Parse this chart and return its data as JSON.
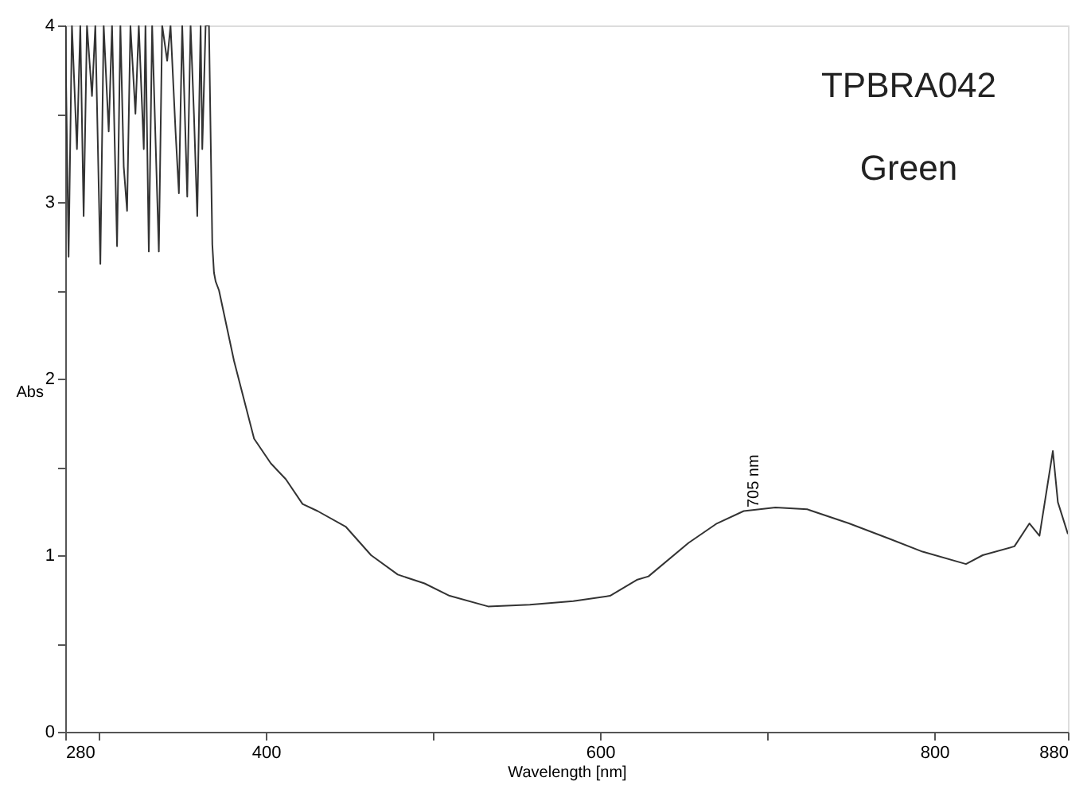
{
  "chart_data": {
    "type": "line",
    "xlabel": "Wavelength [nm]",
    "ylabel": "Abs",
    "x": [
      280,
      282,
      284,
      287,
      289,
      291,
      293,
      296,
      298,
      301,
      303,
      306,
      308,
      311,
      313,
      315,
      317,
      319,
      322,
      324,
      327,
      328,
      330,
      332,
      336,
      338,
      341,
      343,
      346,
      348,
      350,
      353,
      355,
      357,
      359,
      361,
      362,
      364,
      366,
      368,
      369,
      370,
      372,
      381,
      393,
      403,
      412,
      422,
      431,
      448,
      463,
      479,
      495,
      510,
      533,
      558,
      584,
      606,
      622,
      629,
      653,
      670,
      686,
      705,
      724,
      749,
      774,
      793,
      819,
      829,
      848,
      857,
      863,
      871,
      874,
      880
    ],
    "series": [
      {
        "color": "#333333",
        "values": [
          4,
          2.69,
          4,
          3.3,
          4,
          2.92,
          4,
          3.6,
          4,
          2.65,
          4,
          3.4,
          4,
          2.75,
          4,
          3.2,
          2.95,
          4,
          3.5,
          4,
          3.3,
          4,
          2.72,
          4,
          2.72,
          4,
          3.8,
          4,
          3.4,
          3.05,
          4,
          3.03,
          4,
          3.5,
          2.92,
          4,
          3.3,
          4,
          4,
          2.76,
          2.6,
          2.55,
          2.5,
          2.1,
          1.66,
          1.52,
          1.43,
          1.29,
          1.25,
          1.16,
          1.0,
          0.89,
          0.84,
          0.77,
          0.71,
          0.72,
          0.74,
          0.77,
          0.86,
          0.88,
          1.07,
          1.18,
          1.25,
          1.27,
          1.26,
          1.18,
          1.09,
          1.02,
          0.95,
          1.0,
          1.05,
          1.18,
          1.11,
          1.59,
          1.3,
          1.12
        ]
      }
    ],
    "xlim": [
      280,
      880
    ],
    "xticks": [
      280,
      {
        "value": 300,
        "label": null
      },
      400,
      {
        "value": 500,
        "label": null
      },
      600,
      {
        "value": 700,
        "label": null
      },
      800,
      880
    ],
    "ylim": [
      0,
      4
    ],
    "yticks": [
      0,
      {
        "value": 0.5,
        "label": null
      },
      1,
      {
        "value": 1.5,
        "label": null
      },
      2,
      {
        "value": 2.5,
        "label": null
      },
      3,
      {
        "value": 3.5,
        "label": null
      },
      4
    ],
    "grid": false,
    "marker": "none",
    "line_style": "solid",
    "annotations": [
      {
        "text": "705 nm",
        "x": 705,
        "y": 1.27
      },
      "TPBRA042",
      "Green"
    ]
  }
}
